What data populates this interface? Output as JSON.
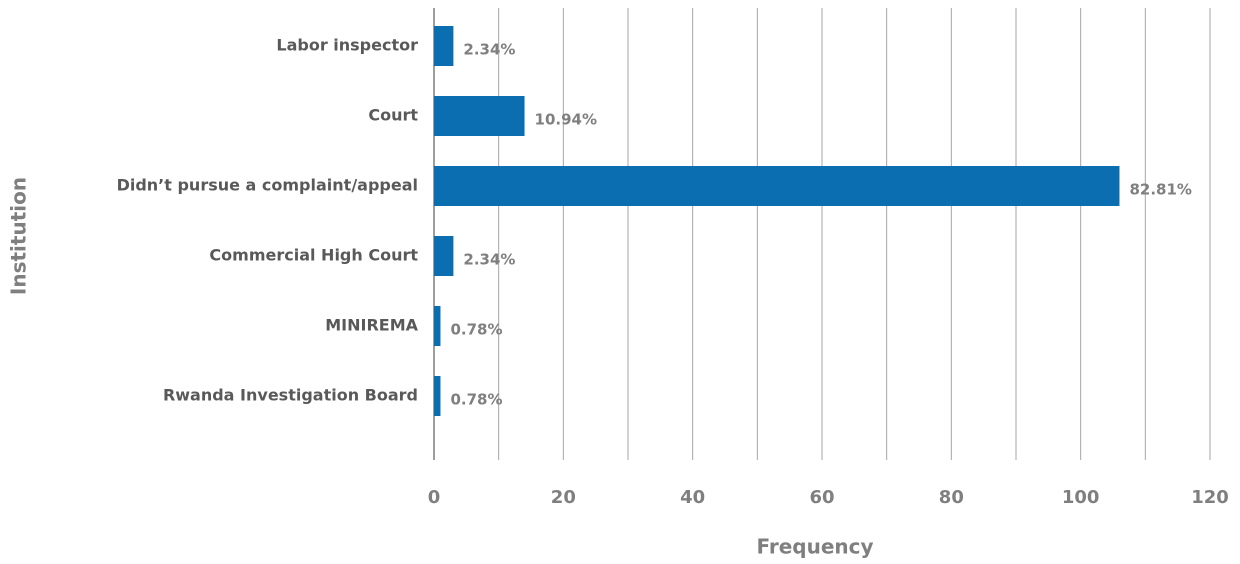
{
  "chart_data": {
    "type": "bar",
    "orientation": "horizontal",
    "x_label": "Frequency",
    "y_label": "Institution",
    "categories": [
      "Labor inspector",
      "Court",
      "Didn’t pursue a complaint/appeal",
      "Commercial High Court",
      "MINIREMA",
      "Rwanda Investigation Board"
    ],
    "values": [
      3,
      14,
      106,
      3,
      1,
      1
    ],
    "percent_labels": [
      "2.34%",
      "10.94%",
      "82.81%",
      "2.34%",
      "0.78%",
      "0.78%"
    ],
    "color": "#0a6eb0",
    "xlim": [
      0,
      120
    ],
    "xticks": [
      0,
      20,
      40,
      60,
      80,
      100,
      120
    ],
    "minor_xticks": [
      10,
      30,
      50,
      70,
      90,
      110
    ],
    "grid": true
  }
}
